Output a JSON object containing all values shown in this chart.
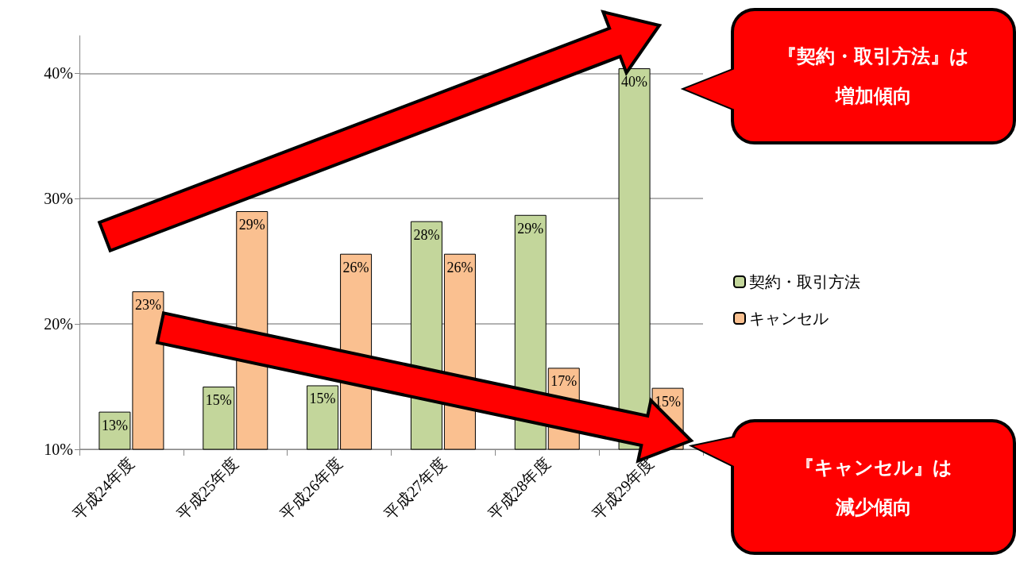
{
  "chart_data": {
    "type": "bar",
    "categories": [
      "平成24年度",
      "平成25年度",
      "平成26年度",
      "平成27年度",
      "平成28年度",
      "平成29年度"
    ],
    "series": [
      {
        "name": "契約・取引方法",
        "color": "#c3d69b",
        "values": [
          13.0,
          15.0,
          15.1,
          28.2,
          28.7,
          40.4
        ],
        "value_labels": [
          "13%",
          "15%",
          "15%",
          "28%",
          "29%",
          "40%"
        ]
      },
      {
        "name": "キャンセル",
        "color": "#fac090",
        "values": [
          22.6,
          29.0,
          25.6,
          25.6,
          16.5,
          14.9
        ],
        "value_labels": [
          "23%",
          "29%",
          "26%",
          "26%",
          "17%",
          "15%"
        ]
      }
    ],
    "ylim": [
      10,
      43
    ],
    "yticks": [
      {
        "value": 10,
        "label": "10%"
      },
      {
        "value": 20,
        "label": "20%"
      },
      {
        "value": 30,
        "label": "30%"
      },
      {
        "value": 40,
        "label": "40%"
      }
    ],
    "grid": "y",
    "legend": "right",
    "annotations": [
      "『契約・取引方法』は増加傾向",
      "『キャンセル』は減少傾向"
    ]
  }
}
